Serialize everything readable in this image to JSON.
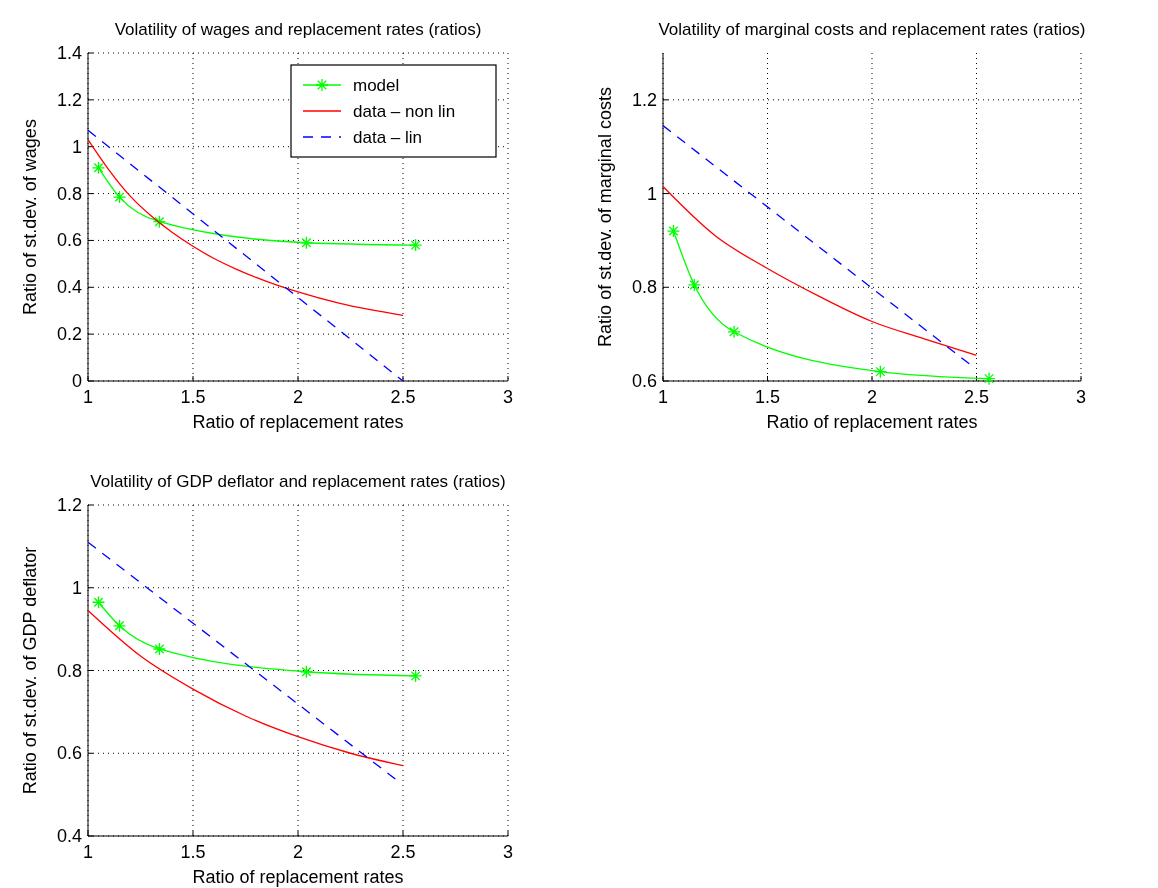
{
  "chart_data": [
    {
      "type": "line",
      "title": "Volatility of wages and replacement rates (ratios)",
      "xlabel": "Ratio of replacement rates",
      "ylabel": "Ratio of st.dev. of wages",
      "xlim": [
        1,
        3
      ],
      "xticks": [
        1,
        1.5,
        2,
        2.5,
        3
      ],
      "ylim": [
        0,
        1.4
      ],
      "yticks": [
        0,
        0.2,
        0.4,
        0.6,
        0.8,
        1,
        1.2,
        1.4
      ],
      "grid": true,
      "legend": "top right",
      "series": [
        {
          "name": "model",
          "color": "#00ff00",
          "marker": "cross",
          "line_style": "solid",
          "x": [
            1.05,
            1.15,
            1.34,
            2.04,
            2.56
          ],
          "values": [
            0.91,
            0.785,
            0.68,
            0.59,
            0.58
          ]
        },
        {
          "name": "data – non lin",
          "color": "#ff0000",
          "marker": "none",
          "line_style": "solid",
          "x": [
            1,
            1.1,
            1.2,
            1.3,
            1.4,
            1.5,
            1.6,
            1.7,
            1.8,
            1.9,
            2,
            2.2,
            2.5
          ],
          "values": [
            1.03,
            0.9,
            0.79,
            0.705,
            0.635,
            0.575,
            0.523,
            0.48,
            0.442,
            0.409,
            0.38,
            0.331,
            0.28
          ]
        },
        {
          "name": "data – lin",
          "color": "#0000ff",
          "marker": "none",
          "line_style": "dashed",
          "x": [
            1,
            2.5
          ],
          "values": [
            1.07,
            0
          ]
        }
      ]
    },
    {
      "type": "line",
      "title": "Volatility of marginal costs and replacement rates (ratios)",
      "xlabel": "Ratio of replacement rates",
      "ylabel": "Ratio of st.dev. of marginal costs",
      "xlim": [
        1,
        3
      ],
      "xticks": [
        1,
        1.5,
        2,
        2.5,
        3
      ],
      "ylim": [
        0.6,
        1.3
      ],
      "yticks": [
        0.6,
        0.8,
        1,
        1.2
      ],
      "grid": true,
      "legend": false,
      "series": [
        {
          "color": "#00ff00",
          "line_style": "solid",
          "x": [
            1.05,
            1.15,
            1.34,
            2.04,
            2.56
          ],
          "values": [
            0.92,
            0.805,
            0.705,
            0.62,
            0.605
          ],
          "marker": "cross"
        },
        {
          "color": "#ff0000",
          "marker": "none",
          "line_style": "solid",
          "x": [
            1,
            1.25,
            1.5,
            1.75,
            2,
            2.25,
            2.5
          ],
          "values": [
            1.015,
            0.91,
            0.84,
            0.78,
            0.727,
            0.69,
            0.655
          ]
        },
        {
          "color": "#0000ff",
          "marker": "none",
          "line_style": "dashed",
          "x": [
            1,
            2.47
          ],
          "values": [
            1.145,
            0.635
          ]
        }
      ]
    },
    {
      "type": "line",
      "title": "Volatility of GDP deflator and replacement rates (ratios)",
      "xlabel": "Ratio of replacement rates",
      "ylabel": "Ratio of st.dev. of GDP deflator",
      "xlim": [
        1,
        3
      ],
      "xticks": [
        1,
        1.5,
        2,
        2.5,
        3
      ],
      "ylim": [
        0.4,
        1.2
      ],
      "yticks": [
        0.4,
        0.6,
        0.8,
        1,
        1.2
      ],
      "grid": true,
      "legend": false,
      "series": [
        {
          "color": "#00ff00",
          "marker": "cross",
          "line_style": "solid",
          "x": [
            1.05,
            1.15,
            1.34,
            2.04,
            2.56
          ],
          "values": [
            0.965,
            0.908,
            0.852,
            0.797,
            0.787
          ]
        },
        {
          "color": "#ff0000",
          "marker": "none",
          "line_style": "solid",
          "x": [
            1,
            1.25,
            1.5,
            1.75,
            2,
            2.25,
            2.5
          ],
          "values": [
            0.945,
            0.835,
            0.755,
            0.69,
            0.64,
            0.6,
            0.57
          ]
        },
        {
          "color": "#0000ff",
          "marker": "none",
          "line_style": "dashed",
          "x": [
            1,
            2.47
          ],
          "values": [
            1.11,
            0.535
          ]
        }
      ]
    }
  ]
}
